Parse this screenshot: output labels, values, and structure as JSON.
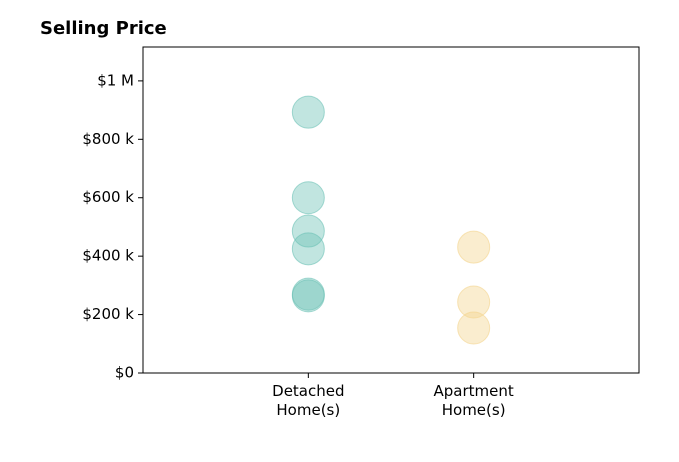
{
  "chart_data": {
    "type": "strip",
    "title": "Selling Price",
    "categories": [
      "Detached\nHome(s)",
      "Apartment\nHome(s)"
    ],
    "values": [
      [
        893000,
        600000,
        486000,
        425000,
        270000,
        264000
      ],
      [
        431000,
        243000,
        154000
      ]
    ],
    "colors": [
      "#6cc2b5",
      "#f3d38c"
    ],
    "ylim": [
      0,
      1116000
    ],
    "yticks": [
      {
        "value": 0,
        "label": "$0"
      },
      {
        "value": 200000,
        "label": "$200 k"
      },
      {
        "value": 400000,
        "label": "$400 k"
      },
      {
        "value": 600000,
        "label": "$600 k"
      },
      {
        "value": 800000,
        "label": "$800 k"
      },
      {
        "value": 1000000,
        "label": "$1 M"
      }
    ]
  }
}
